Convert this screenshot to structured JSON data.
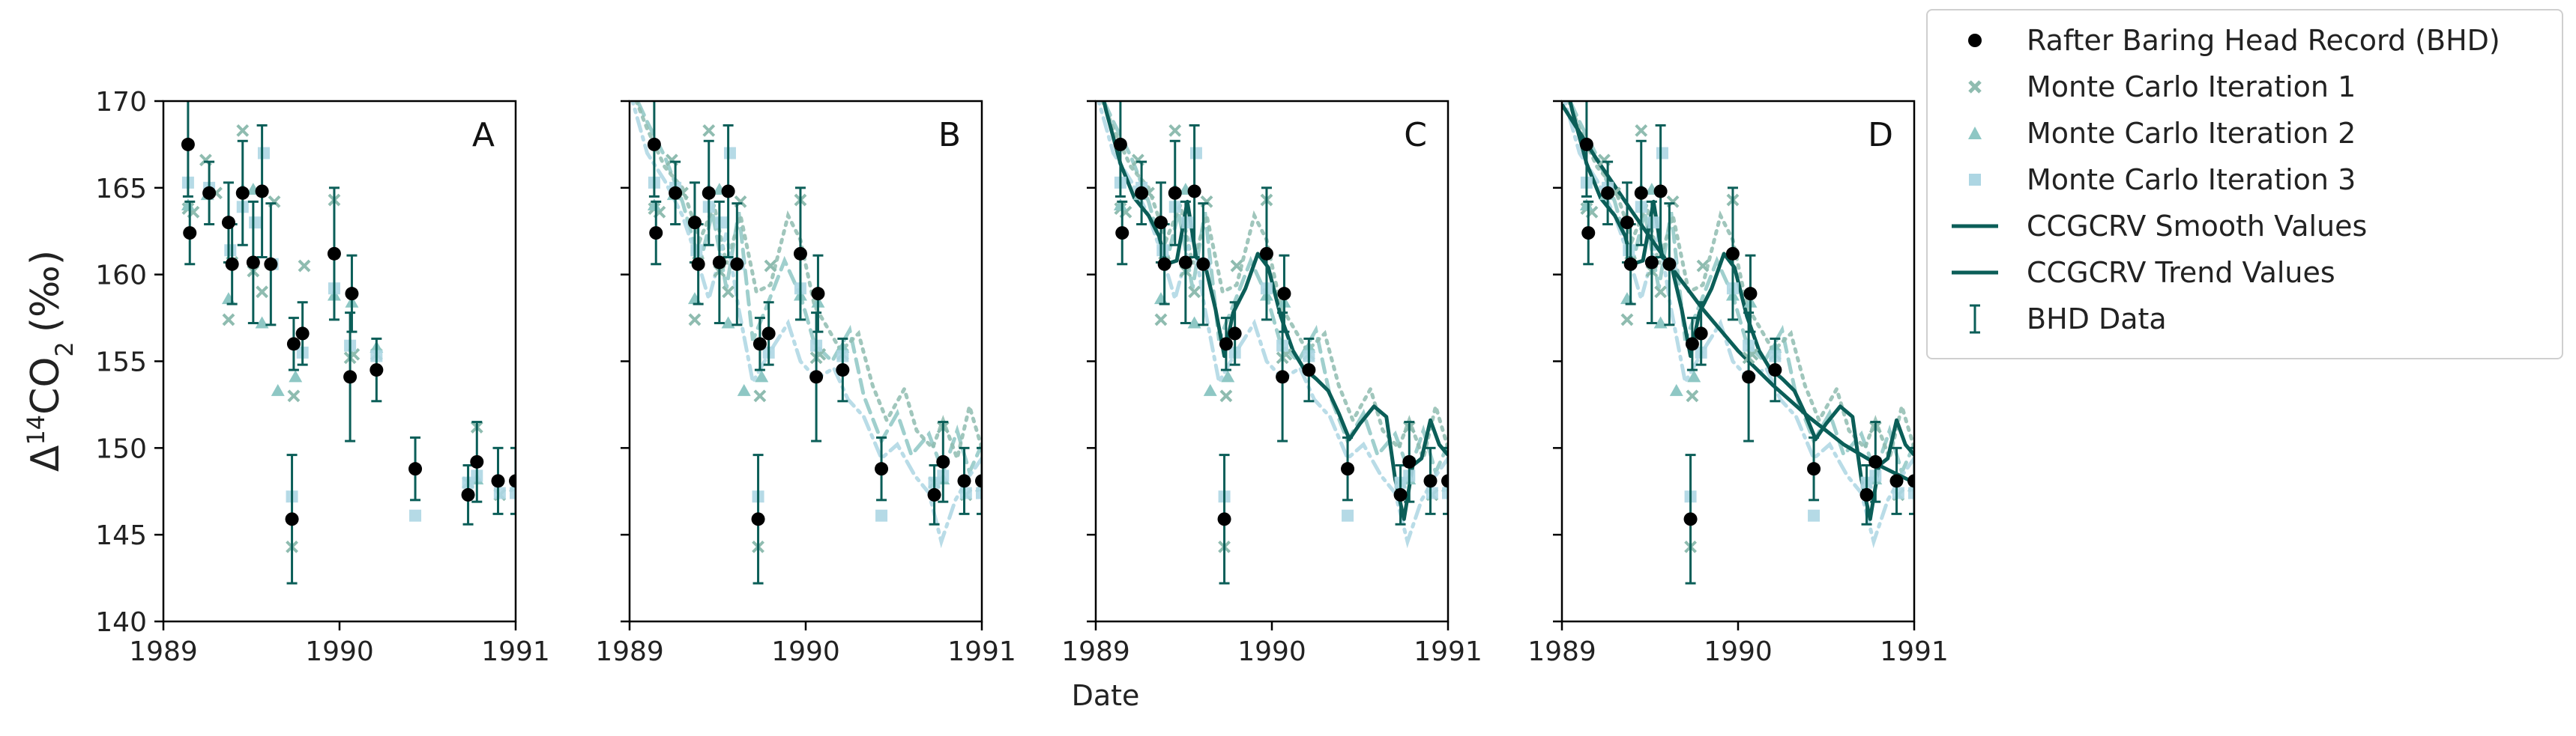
{
  "chart_data": {
    "type": "scatter",
    "xlabel": "Date",
    "ylabel_main": "Δ",
    "ylabel_sup": "14",
    "ylabel_co": "CO",
    "ylabel_sub": "2",
    "ylabel_unit": "(‰)",
    "xlim": [
      1989,
      1991
    ],
    "ylim": [
      140,
      170
    ],
    "xticks": [
      1989,
      1990,
      1991
    ],
    "xtick_labels": [
      "1989",
      "1990",
      "1991"
    ],
    "yticks": [
      140,
      145,
      150,
      155,
      160,
      165,
      170
    ],
    "ytick_labels": [
      "140",
      "145",
      "150",
      "155",
      "160",
      "165",
      "170"
    ],
    "panels": [
      "A",
      "B",
      "C",
      "D"
    ],
    "colors": {
      "bhd": "#000000",
      "errorbar": "#0b5e58",
      "trend": "#0b5e58",
      "smooth": "#0b5e58",
      "mc1": "#8fbcb0",
      "mc2": "#8ec7c4",
      "mc3": "#add6e3"
    },
    "legend": {
      "placement": "upper-right outside",
      "entries": [
        "Rafter Baring Head Record (BHD)",
        "Monte Carlo Iteration 1",
        "Monte Carlo Iteration 2",
        "Monte Carlo Iteration 3",
        "CCGCRV Smooth Values",
        "CCGCRV Trend Values",
        "BHD Data"
      ]
    },
    "bhd": [
      {
        "x": 1989.14,
        "y": 167.5,
        "err": 3.0
      },
      {
        "x": 1989.15,
        "y": 162.4,
        "err": 1.8
      },
      {
        "x": 1989.26,
        "y": 164.7,
        "err": 1.8
      },
      {
        "x": 1989.37,
        "y": 163.0,
        "err": 2.3
      },
      {
        "x": 1989.39,
        "y": 160.6,
        "err": 2.3
      },
      {
        "x": 1989.45,
        "y": 164.7,
        "err": 3.0
      },
      {
        "x": 1989.51,
        "y": 160.7,
        "err": 3.5
      },
      {
        "x": 1989.56,
        "y": 164.8,
        "err": 3.8
      },
      {
        "x": 1989.61,
        "y": 160.6,
        "err": 3.5
      },
      {
        "x": 1989.73,
        "y": 145.9,
        "err": 3.7
      },
      {
        "x": 1989.74,
        "y": 156.0,
        "err": 1.5
      },
      {
        "x": 1989.79,
        "y": 156.6,
        "err": 1.8
      },
      {
        "x": 1989.97,
        "y": 161.2,
        "err": 3.8
      },
      {
        "x": 1990.06,
        "y": 154.1,
        "err": 3.7
      },
      {
        "x": 1990.07,
        "y": 158.9,
        "err": 2.2
      },
      {
        "x": 1990.21,
        "y": 154.5,
        "err": 1.8
      },
      {
        "x": 1990.43,
        "y": 148.8,
        "err": 1.8
      },
      {
        "x": 1990.73,
        "y": 147.3,
        "err": 1.7
      },
      {
        "x": 1990.78,
        "y": 149.2,
        "err": 2.3
      },
      {
        "x": 1990.9,
        "y": 148.1,
        "err": 1.9
      },
      {
        "x": 1991.0,
        "y": 148.1,
        "err": 1.9
      }
    ],
    "mc1": [
      {
        "x": 1989.14,
        "y": 163.8
      },
      {
        "x": 1989.17,
        "y": 163.6
      },
      {
        "x": 1989.24,
        "y": 166.6
      },
      {
        "x": 1989.3,
        "y": 164.7
      },
      {
        "x": 1989.37,
        "y": 157.4
      },
      {
        "x": 1989.39,
        "y": 160.7
      },
      {
        "x": 1989.45,
        "y": 168.3
      },
      {
        "x": 1989.51,
        "y": 160.2
      },
      {
        "x": 1989.56,
        "y": 159.0
      },
      {
        "x": 1989.63,
        "y": 164.2
      },
      {
        "x": 1989.73,
        "y": 144.3
      },
      {
        "x": 1989.74,
        "y": 153.0
      },
      {
        "x": 1989.8,
        "y": 160.5
      },
      {
        "x": 1989.97,
        "y": 164.3
      },
      {
        "x": 1990.06,
        "y": 155.2
      },
      {
        "x": 1990.08,
        "y": 155.4
      },
      {
        "x": 1990.21,
        "y": 155.4
      },
      {
        "x": 1990.73,
        "y": 148.0
      },
      {
        "x": 1990.78,
        "y": 151.2
      },
      {
        "x": 1990.91,
        "y": 147.3
      },
      {
        "x": 1991.0,
        "y": 147.8
      }
    ],
    "mc2": [
      {
        "x": 1989.14,
        "y": 164.0
      },
      {
        "x": 1989.25,
        "y": 164.6
      },
      {
        "x": 1989.37,
        "y": 158.6
      },
      {
        "x": 1989.45,
        "y": 164.9
      },
      {
        "x": 1989.51,
        "y": 164.9
      },
      {
        "x": 1989.56,
        "y": 157.2
      },
      {
        "x": 1989.65,
        "y": 153.3
      },
      {
        "x": 1989.75,
        "y": 154.1
      },
      {
        "x": 1989.97,
        "y": 158.8
      },
      {
        "x": 1990.07,
        "y": 158.4
      },
      {
        "x": 1990.21,
        "y": 155.8
      },
      {
        "x": 1990.78,
        "y": 148.2
      },
      {
        "x": 1991.0,
        "y": 147.8
      }
    ],
    "mc3": [
      {
        "x": 1989.14,
        "y": 165.3
      },
      {
        "x": 1989.26,
        "y": 165.0
      },
      {
        "x": 1989.38,
        "y": 161.4
      },
      {
        "x": 1989.45,
        "y": 163.9
      },
      {
        "x": 1989.52,
        "y": 163.0
      },
      {
        "x": 1989.57,
        "y": 167.0
      },
      {
        "x": 1989.62,
        "y": 160.6
      },
      {
        "x": 1989.73,
        "y": 147.2
      },
      {
        "x": 1989.79,
        "y": 155.5
      },
      {
        "x": 1989.97,
        "y": 159.2
      },
      {
        "x": 1990.06,
        "y": 155.9
      },
      {
        "x": 1990.21,
        "y": 155.3
      },
      {
        "x": 1990.43,
        "y": 146.1
      },
      {
        "x": 1990.73,
        "y": 148.0
      },
      {
        "x": 1990.78,
        "y": 148.4
      },
      {
        "x": 1990.91,
        "y": 147.4
      },
      {
        "x": 1991.0,
        "y": 147.4
      }
    ],
    "mc_curves": [
      {
        "style": "dashed",
        "color_key": "mc2",
        "points": [
          [
            1989.0,
            171
          ],
          [
            1989.1,
            168.8
          ],
          [
            1989.2,
            166.8
          ],
          [
            1989.3,
            164.2
          ],
          [
            1989.4,
            160.6
          ],
          [
            1989.47,
            163.6
          ],
          [
            1989.55,
            159.2
          ],
          [
            1989.62,
            163.6
          ],
          [
            1989.7,
            156.2
          ],
          [
            1989.78,
            158.2
          ],
          [
            1989.88,
            160.8
          ],
          [
            1989.97,
            158.8
          ],
          [
            1990.05,
            156.0
          ],
          [
            1990.15,
            155.0
          ],
          [
            1990.25,
            156.8
          ],
          [
            1990.33,
            153.0
          ],
          [
            1990.43,
            150.4
          ],
          [
            1990.52,
            152.0
          ],
          [
            1990.6,
            149.6
          ],
          [
            1990.7,
            150.8
          ],
          [
            1990.78,
            148.6
          ],
          [
            1990.86,
            151.0
          ],
          [
            1990.93,
            148.6
          ],
          [
            1991.0,
            150.2
          ]
        ]
      },
      {
        "style": "dotted",
        "color_key": "mc1",
        "points": [
          [
            1989.0,
            171
          ],
          [
            1989.1,
            168.4
          ],
          [
            1989.2,
            166.2
          ],
          [
            1989.3,
            165.0
          ],
          [
            1989.4,
            162.0
          ],
          [
            1989.48,
            164.0
          ],
          [
            1989.55,
            160.6
          ],
          [
            1989.63,
            163.4
          ],
          [
            1989.72,
            159.0
          ],
          [
            1989.8,
            159.4
          ],
          [
            1989.9,
            163.4
          ],
          [
            1989.97,
            162.0
          ],
          [
            1990.05,
            158.2
          ],
          [
            1990.12,
            157.0
          ],
          [
            1990.2,
            155.6
          ],
          [
            1990.3,
            156.6
          ],
          [
            1990.38,
            153.6
          ],
          [
            1990.46,
            151.6
          ],
          [
            1990.56,
            153.4
          ],
          [
            1990.63,
            151.0
          ],
          [
            1990.72,
            150.0
          ],
          [
            1990.78,
            151.6
          ],
          [
            1990.86,
            149.4
          ],
          [
            1990.93,
            152.4
          ],
          [
            1991.0,
            150.0
          ]
        ]
      },
      {
        "style": "dashdot",
        "color_key": "mc3",
        "points": [
          [
            1989.0,
            170.6
          ],
          [
            1989.1,
            167.0
          ],
          [
            1989.2,
            165.4
          ],
          [
            1989.3,
            163.4
          ],
          [
            1989.38,
            161.0
          ],
          [
            1989.45,
            158.6
          ],
          [
            1989.55,
            162.4
          ],
          [
            1989.62,
            158.0
          ],
          [
            1989.7,
            153.8
          ],
          [
            1989.8,
            155.6
          ],
          [
            1989.9,
            157.2
          ],
          [
            1989.97,
            155.0
          ],
          [
            1990.06,
            154.0
          ],
          [
            1990.16,
            154.6
          ],
          [
            1990.24,
            152.8
          ],
          [
            1990.33,
            151.8
          ],
          [
            1990.43,
            149.4
          ],
          [
            1990.52,
            150.2
          ],
          [
            1990.62,
            148.4
          ],
          [
            1990.7,
            147.4
          ],
          [
            1990.77,
            144.6
          ],
          [
            1990.85,
            147.0
          ],
          [
            1990.93,
            148.4
          ],
          [
            1991.0,
            149.4
          ]
        ]
      }
    ],
    "smooth": [
      [
        1989.0,
        172.0
      ],
      [
        1989.06,
        169.4
      ],
      [
        1989.14,
        166.4
      ],
      [
        1989.22,
        164.4
      ],
      [
        1989.3,
        163.4
      ],
      [
        1989.36,
        162.2
      ],
      [
        1989.4,
        160.6
      ],
      [
        1989.46,
        160.8
      ],
      [
        1989.52,
        164.2
      ],
      [
        1989.57,
        161.0
      ],
      [
        1989.62,
        160.6
      ],
      [
        1989.68,
        158.0
      ],
      [
        1989.73,
        155.3
      ],
      [
        1989.78,
        157.8
      ],
      [
        1989.85,
        159.2
      ],
      [
        1989.92,
        161.2
      ],
      [
        1989.98,
        160.4
      ],
      [
        1990.05,
        157.6
      ],
      [
        1990.12,
        155.6
      ],
      [
        1990.18,
        154.6
      ],
      [
        1990.25,
        154.0
      ],
      [
        1990.32,
        153.3
      ],
      [
        1990.38,
        152.0
      ],
      [
        1990.44,
        150.5
      ],
      [
        1990.5,
        151.4
      ],
      [
        1990.58,
        152.4
      ],
      [
        1990.65,
        151.8
      ],
      [
        1990.7,
        148.2
      ],
      [
        1990.75,
        145.9
      ],
      [
        1990.8,
        149.0
      ],
      [
        1990.85,
        149.4
      ],
      [
        1990.9,
        151.6
      ],
      [
        1990.95,
        150.2
      ],
      [
        1991.0,
        149.6
      ]
    ],
    "trend": [
      [
        1989.0,
        169.8
      ],
      [
        1989.2,
        166.6
      ],
      [
        1989.4,
        163.6
      ],
      [
        1989.6,
        160.7
      ],
      [
        1989.8,
        158.0
      ],
      [
        1990.0,
        155.6
      ],
      [
        1990.2,
        153.6
      ],
      [
        1990.4,
        151.8
      ],
      [
        1990.6,
        150.2
      ],
      [
        1990.8,
        149.0
      ],
      [
        1991.0,
        148.0
      ]
    ]
  }
}
